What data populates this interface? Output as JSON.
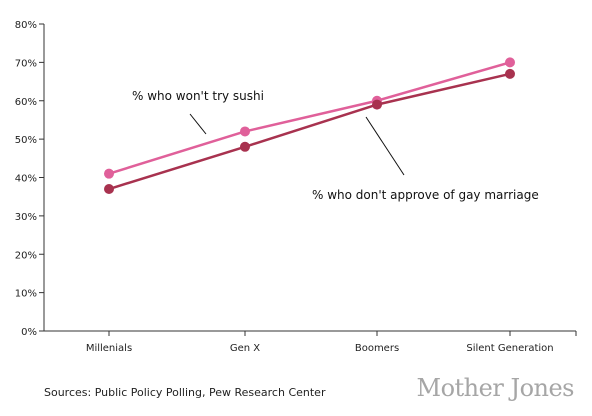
{
  "chart_data": {
    "type": "line",
    "categories": [
      "Millenials",
      "Gen X",
      "Boomers",
      "Silent Generation"
    ],
    "y_ticks": [
      "0%",
      "10%",
      "20%",
      "30%",
      "40%",
      "50%",
      "60%",
      "70%",
      "80%"
    ],
    "ylim": [
      0,
      80
    ],
    "grid": false,
    "series": [
      {
        "name": "% who won't try sushi",
        "values": [
          41,
          52,
          60,
          70
        ],
        "color": "#e0609a"
      },
      {
        "name": "% who don't approve of gay marriage",
        "values": [
          37,
          48,
          59,
          67
        ],
        "color": "#a8324f"
      }
    ]
  },
  "footer": {
    "source": "Sources: Public Policy Polling, Pew Research Center",
    "brand": "Mother Jones"
  }
}
